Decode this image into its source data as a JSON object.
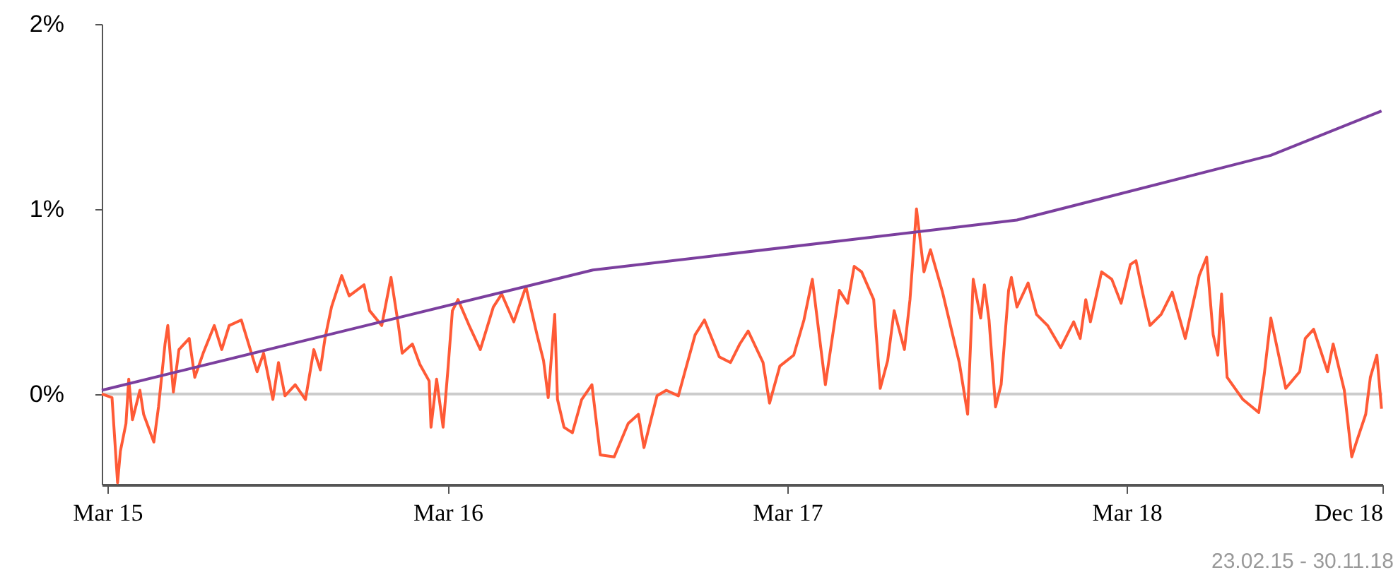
{
  "chart_data": {
    "type": "line",
    "xlim": [
      "2015-02-23",
      "2018-12-01"
    ],
    "xticks": [
      {
        "value": "2015-03-01",
        "label": "Mar 15"
      },
      {
        "value": "2016-03-01",
        "label": "Mar 16"
      },
      {
        "value": "2017-03-01",
        "label": "Mar 17"
      },
      {
        "value": "2018-03-01",
        "label": "Mar 18"
      },
      {
        "value": "2018-12-01",
        "label": "Dec 18"
      }
    ],
    "ylim": [
      -0.49,
      2.0
    ],
    "yticks": [
      {
        "value": 0,
        "label": "0%"
      },
      {
        "value": 1,
        "label": "1%"
      },
      {
        "value": 2,
        "label": "2%"
      }
    ],
    "grid": false,
    "marker": "none",
    "line_style": "solid",
    "ref_lines": [
      {
        "axis": "y",
        "value": 0,
        "color": "#cccccc"
      }
    ],
    "annotations": [
      "23.02.15 - 30.11.18"
    ],
    "series": [
      {
        "color": "#ff5a36",
        "x": [
          "2015-02-23",
          "2015-03-06",
          "2015-03-12",
          "2015-03-15",
          "2015-03-21",
          "2015-03-24",
          "2015-03-28",
          "2015-04-05",
          "2015-04-09",
          "2015-04-20",
          "2015-04-25",
          "2015-05-02",
          "2015-05-05",
          "2015-05-11",
          "2015-05-17",
          "2015-05-28",
          "2015-06-03",
          "2015-06-12",
          "2015-06-24",
          "2015-07-02",
          "2015-07-10",
          "2015-07-23",
          "2015-08-09",
          "2015-08-16",
          "2015-08-26",
          "2015-09-01",
          "2015-09-08",
          "2015-09-19",
          "2015-09-30",
          "2015-10-09",
          "2015-10-16",
          "2015-10-21",
          "2015-10-28",
          "2015-11-08",
          "2015-11-16",
          "2015-12-02",
          "2015-12-08",
          "2015-12-21",
          "2015-12-31",
          "2016-01-08",
          "2016-01-12",
          "2016-01-23",
          "2016-01-31",
          "2016-02-10",
          "2016-02-12",
          "2016-02-18",
          "2016-02-25",
          "2016-03-01",
          "2016-03-06",
          "2016-03-12",
          "2016-03-24",
          "2016-04-05",
          "2016-04-19",
          "2016-04-28",
          "2016-05-11",
          "2016-05-24",
          "2016-06-05",
          "2016-06-12",
          "2016-06-17",
          "2016-06-24",
          "2016-06-27",
          "2016-07-04",
          "2016-07-13",
          "2016-07-23",
          "2016-08-03",
          "2016-08-12",
          "2016-08-27",
          "2016-09-11",
          "2016-09-22",
          "2016-09-28",
          "2016-10-12",
          "2016-10-22",
          "2016-11-04",
          "2016-11-11",
          "2016-11-22",
          "2016-12-02",
          "2016-12-18",
          "2016-12-30",
          "2017-01-09",
          "2017-01-18",
          "2017-02-03",
          "2017-02-10",
          "2017-02-21",
          "2017-03-08",
          "2017-03-19",
          "2017-03-28",
          "2017-04-11",
          "2017-04-26",
          "2017-05-05",
          "2017-05-12",
          "2017-05-20",
          "2017-06-02",
          "2017-06-09",
          "2017-06-17",
          "2017-06-24",
          "2017-07-05",
          "2017-07-11",
          "2017-07-18",
          "2017-07-26",
          "2017-08-02",
          "2017-08-15",
          "2017-09-02",
          "2017-09-11",
          "2017-09-17",
          "2017-09-25",
          "2017-09-29",
          "2017-10-04",
          "2017-10-11",
          "2017-10-17",
          "2017-10-25",
          "2017-10-28",
          "2017-11-03",
          "2017-11-15",
          "2017-11-24",
          "2017-12-06",
          "2017-12-20",
          "2018-01-03",
          "2018-01-10",
          "2018-01-16",
          "2018-01-21",
          "2018-02-02",
          "2018-02-13",
          "2018-02-23",
          "2018-03-05",
          "2018-03-11",
          "2018-03-18",
          "2018-03-26",
          "2018-04-07",
          "2018-04-19",
          "2018-05-03",
          "2018-05-18",
          "2018-05-26",
          "2018-06-02",
          "2018-06-07",
          "2018-06-11",
          "2018-06-17",
          "2018-07-04",
          "2018-07-21",
          "2018-07-27",
          "2018-08-03",
          "2018-08-19",
          "2018-09-03",
          "2018-09-09",
          "2018-09-18",
          "2018-10-03",
          "2018-10-09",
          "2018-10-21",
          "2018-10-29",
          "2018-11-03",
          "2018-11-13",
          "2018-11-18",
          "2018-11-25",
          "2018-11-30"
        ],
        "values": [
          0.0,
          -0.02,
          -0.48,
          -0.31,
          -0.16,
          0.08,
          -0.14,
          0.02,
          -0.11,
          -0.26,
          -0.07,
          0.27,
          0.37,
          0.01,
          0.24,
          0.3,
          0.09,
          0.22,
          0.37,
          0.24,
          0.37,
          0.4,
          0.12,
          0.22,
          -0.03,
          0.17,
          -0.01,
          0.05,
          -0.03,
          0.24,
          0.13,
          0.3,
          0.47,
          0.64,
          0.53,
          0.59,
          0.45,
          0.37,
          0.63,
          0.37,
          0.22,
          0.27,
          0.16,
          0.07,
          -0.18,
          0.08,
          -0.18,
          0.12,
          0.45,
          0.51,
          0.37,
          0.24,
          0.47,
          0.54,
          0.39,
          0.58,
          0.32,
          0.18,
          -0.02,
          0.43,
          -0.03,
          -0.18,
          -0.21,
          -0.03,
          0.05,
          -0.33,
          -0.34,
          -0.16,
          -0.11,
          -0.29,
          -0.01,
          0.02,
          -0.01,
          0.12,
          0.32,
          0.4,
          0.2,
          0.17,
          0.27,
          0.34,
          0.17,
          -0.05,
          0.15,
          0.21,
          0.4,
          0.62,
          0.05,
          0.56,
          0.49,
          0.69,
          0.66,
          0.51,
          0.03,
          0.18,
          0.45,
          0.24,
          0.51,
          1.0,
          0.66,
          0.78,
          0.55,
          0.17,
          -0.11,
          0.62,
          0.41,
          0.59,
          0.4,
          -0.07,
          0.05,
          0.56,
          0.63,
          0.47,
          0.6,
          0.43,
          0.37,
          0.25,
          0.39,
          0.3,
          0.51,
          0.39,
          0.66,
          0.62,
          0.49,
          0.7,
          0.72,
          0.55,
          0.37,
          0.43,
          0.55,
          0.3,
          0.64,
          0.74,
          0.32,
          0.21,
          0.54,
          0.09,
          -0.03,
          -0.1,
          0.11,
          0.41,
          0.03,
          0.12,
          0.3,
          0.35,
          0.12,
          0.27,
          0.02,
          -0.34,
          -0.26,
          -0.11,
          0.09,
          0.21,
          -0.08
        ]
      },
      {
        "color": "#7b3f9e",
        "x": [
          "2015-02-23",
          "2016-08-04",
          "2017-11-03",
          "2018-08-03",
          "2018-11-30"
        ],
        "values": [
          0.02,
          0.67,
          0.94,
          1.29,
          1.53
        ]
      }
    ]
  }
}
